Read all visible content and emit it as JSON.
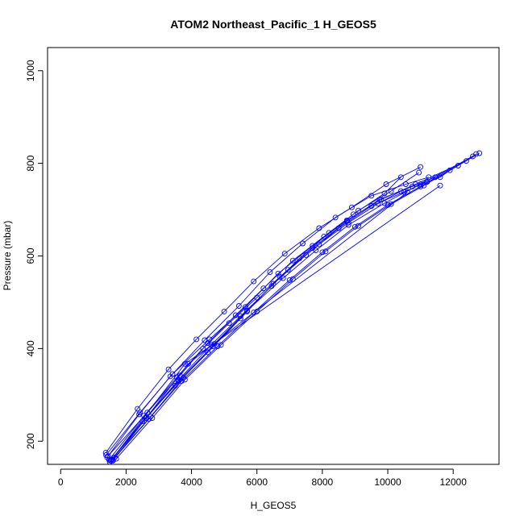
{
  "chart_data": {
    "type": "line",
    "title": "ATOM2 Northeast_Pacific_1 H_GEOS5",
    "xlabel": "H_GEOS5",
    "ylabel": "Pressure (mbar)",
    "xlim": [
      -400,
      13400
    ],
    "ylim": [
      1050,
      150
    ],
    "y_reversed": true,
    "grid": false,
    "legend": "none",
    "xticks": [
      0,
      2000,
      4000,
      6000,
      8000,
      10000,
      12000
    ],
    "yticks": [
      200,
      400,
      600,
      800,
      1000
    ],
    "series_color": "#0000ff",
    "marker": "open-circle",
    "series": [
      {
        "x": [
          1500,
          2500,
          3500,
          4500,
          5500,
          6500,
          7500,
          8500,
          9500,
          10500,
          11200
        ],
        "y": [
          155,
          243,
          320,
          392,
          465,
          540,
          602,
          660,
          708,
          738,
          760
        ]
      },
      {
        "x": [
          1560,
          2620,
          3600,
          4650,
          5700,
          6700,
          7700,
          8750,
          9750,
          10750,
          11450
        ],
        "y": [
          160,
          250,
          330,
          405,
          480,
          555,
          617,
          675,
          722,
          750,
          770
        ]
      },
      {
        "x": [
          1420,
          2400,
          3350,
          4400,
          5450,
          6400,
          7400,
          8400,
          9500,
          10550,
          11250
        ],
        "y": [
          165,
          258,
          340,
          418,
          492,
          565,
          627,
          683,
          730,
          755,
          770
        ]
      },
      {
        "x": [
          1390,
          2430,
          3420,
          4550,
          5650,
          6650,
          7700,
          8750,
          9800,
          10850,
          12400
        ],
        "y": [
          170,
          262,
          345,
          420,
          490,
          562,
          622,
          677,
          722,
          755,
          805
        ]
      },
      {
        "x": [
          1600,
          2700,
          3700,
          4800,
          5900,
          7000,
          8000,
          9000,
          10000,
          11000,
          12700
        ],
        "y": [
          160,
          248,
          330,
          405,
          478,
          548,
          608,
          663,
          710,
          750,
          820
        ]
      },
      {
        "x": [
          1700,
          2800,
          3800,
          4900,
          6000,
          7100,
          8100,
          9100,
          10100,
          11100,
          12800
        ],
        "y": [
          162,
          250,
          333,
          408,
          480,
          550,
          610,
          665,
          712,
          752,
          822
        ]
      },
      {
        "x": [
          1650,
          2750,
          3750,
          4700,
          5700,
          6800,
          7800,
          8800,
          9900,
          11000,
          12600
        ],
        "y": [
          165,
          253,
          337,
          410,
          482,
          552,
          612,
          667,
          714,
          755,
          815
        ]
      },
      {
        "x": [
          1450,
          2650,
          3650,
          4350,
          5150,
          6000,
          6950,
          7900,
          8800,
          9700,
          10400
        ],
        "y": [
          168,
          262,
          342,
          400,
          455,
          510,
          570,
          625,
          672,
          713,
          740
        ]
      },
      {
        "x": [
          1380,
          2350,
          3300,
          4150,
          5000,
          5900,
          6850,
          7900,
          8900,
          9950,
          11000
        ],
        "y": [
          175,
          270,
          355,
          420,
          480,
          545,
          605,
          660,
          705,
          755,
          792
        ]
      },
      {
        "x": [
          1480,
          2550,
          3550,
          4500,
          5350,
          6200,
          7100,
          8050,
          8950,
          9900,
          10400
        ],
        "y": [
          160,
          255,
          338,
          412,
          472,
          530,
          590,
          642,
          690,
          735,
          770
        ]
      },
      {
        "x": [
          1520,
          2600,
          3600,
          4600,
          5500,
          6450,
          7300,
          8200,
          9100,
          10100,
          10950
        ],
        "y": [
          158,
          250,
          332,
          408,
          470,
          535,
          595,
          650,
          698,
          740,
          780
        ]
      },
      {
        "x": [
          1540,
          3800,
          11600
        ],
        "y": [
          158,
          367,
          752
        ]
      },
      {
        "x": [
          1600,
          3900,
          10600
        ],
        "y": [
          158,
          367,
          738
        ]
      },
      {
        "x": [
          11200,
          11600,
          11900,
          12150
        ],
        "y": [
          760,
          770,
          785,
          795
        ]
      }
    ]
  }
}
